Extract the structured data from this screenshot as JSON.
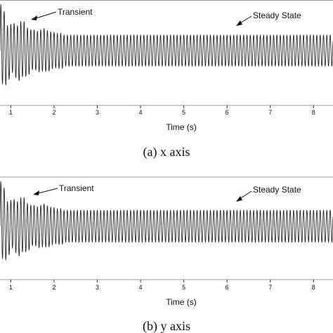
{
  "chart_data": [
    {
      "type": "line",
      "title": "",
      "caption": "(a) x axis",
      "xlabel": "Time (s)",
      "ylabel": "",
      "xlim": [
        0.75,
        8.45
      ],
      "ylim": [
        -1.05,
        1.05
      ],
      "grid": false,
      "xticks": [
        1,
        2,
        3,
        4,
        5,
        6,
        7,
        8
      ],
      "xtick_labels": [
        "1",
        "2",
        "3",
        "4",
        "5",
        "6",
        "7",
        "8"
      ],
      "annotations": [
        {
          "text": "Transient",
          "x": 2.0,
          "y": 0.78
        },
        {
          "text": "Steady State",
          "x": 6.8,
          "y": 0.55
        }
      ],
      "series": [
        {
          "color": "#2a2a2a",
          "waveform": {
            "frequency_hz": 13,
            "steady_amplitude": 0.34,
            "transient_amplitude": 0.95,
            "transient_end_s": 2.2,
            "baseline": 0.0
          }
        }
      ]
    },
    {
      "type": "line",
      "title": "",
      "caption": "(b) y axis",
      "xlabel": "Time (s)",
      "ylabel": "",
      "xlim": [
        0.75,
        8.45
      ],
      "ylim": [
        -1.05,
        1.05
      ],
      "grid": false,
      "xticks": [
        1,
        2,
        3,
        4,
        5,
        6,
        7,
        8
      ],
      "xtick_labels": [
        "1",
        "2",
        "3",
        "4",
        "5",
        "6",
        "7",
        "8"
      ],
      "annotations": [
        {
          "text": "Transient",
          "x": 2.0,
          "y": 0.82
        },
        {
          "text": "Steady State",
          "x": 6.8,
          "y": 0.55
        }
      ],
      "series": [
        {
          "color": "#2a2a2a",
          "waveform": {
            "frequency_hz": 13,
            "steady_amplitude": 0.36,
            "transient_amplitude": 0.95,
            "transient_end_s": 2.2,
            "baseline": 0.0
          }
        }
      ]
    }
  ]
}
